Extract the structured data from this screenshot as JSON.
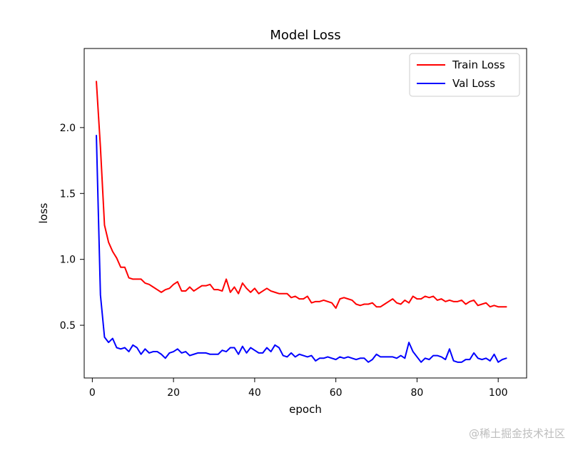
{
  "chart_data": {
    "type": "line",
    "title": "Model Loss",
    "xlabel": "epoch",
    "ylabel": "loss",
    "xlim": [
      -2,
      107
    ],
    "ylim": [
      0.1,
      2.6
    ],
    "xticks": [
      0,
      20,
      40,
      60,
      80,
      100
    ],
    "yticks": [
      0.5,
      1.0,
      1.5,
      2.0
    ],
    "ytick_labels": [
      "0.5",
      "1.0",
      "1.5",
      "2.0"
    ],
    "legend_position": "top-right",
    "x": [
      1,
      2,
      3,
      4,
      5,
      6,
      7,
      8,
      9,
      10,
      11,
      12,
      13,
      14,
      15,
      16,
      17,
      18,
      19,
      20,
      21,
      22,
      23,
      24,
      25,
      26,
      27,
      28,
      29,
      30,
      31,
      32,
      33,
      34,
      35,
      36,
      37,
      38,
      39,
      40,
      41,
      42,
      43,
      44,
      45,
      46,
      47,
      48,
      49,
      50,
      51,
      52,
      53,
      54,
      55,
      56,
      57,
      58,
      59,
      60,
      61,
      62,
      63,
      64,
      65,
      66,
      67,
      68,
      69,
      70,
      71,
      72,
      73,
      74,
      75,
      76,
      77,
      78,
      79,
      80,
      81,
      82,
      83,
      84,
      85,
      86,
      87,
      88,
      89,
      90,
      91,
      92,
      93,
      94,
      95,
      96,
      97,
      98,
      99,
      100,
      101,
      102
    ],
    "series": [
      {
        "name": "Train Loss",
        "color": "#ff0000",
        "values": [
          2.35,
          1.85,
          1.26,
          1.13,
          1.06,
          1.01,
          0.94,
          0.94,
          0.86,
          0.85,
          0.85,
          0.85,
          0.82,
          0.81,
          0.79,
          0.77,
          0.75,
          0.77,
          0.78,
          0.81,
          0.83,
          0.76,
          0.76,
          0.79,
          0.76,
          0.78,
          0.8,
          0.8,
          0.81,
          0.77,
          0.77,
          0.76,
          0.85,
          0.75,
          0.79,
          0.74,
          0.82,
          0.78,
          0.75,
          0.78,
          0.74,
          0.76,
          0.78,
          0.76,
          0.75,
          0.74,
          0.74,
          0.74,
          0.71,
          0.72,
          0.7,
          0.7,
          0.72,
          0.67,
          0.68,
          0.68,
          0.69,
          0.68,
          0.67,
          0.63,
          0.7,
          0.71,
          0.7,
          0.69,
          0.66,
          0.65,
          0.66,
          0.66,
          0.67,
          0.64,
          0.64,
          0.66,
          0.68,
          0.7,
          0.67,
          0.66,
          0.69,
          0.67,
          0.72,
          0.7,
          0.7,
          0.72,
          0.71,
          0.72,
          0.69,
          0.7,
          0.68,
          0.69,
          0.68,
          0.68,
          0.69,
          0.66,
          0.68,
          0.69,
          0.65,
          0.66,
          0.67,
          0.64,
          0.65,
          0.64,
          0.64,
          0.64
        ]
      },
      {
        "name": "Val Loss",
        "color": "#0000ff",
        "values": [
          1.94,
          0.73,
          0.41,
          0.37,
          0.4,
          0.33,
          0.32,
          0.33,
          0.3,
          0.35,
          0.33,
          0.28,
          0.32,
          0.29,
          0.3,
          0.3,
          0.28,
          0.25,
          0.29,
          0.3,
          0.32,
          0.29,
          0.3,
          0.27,
          0.28,
          0.29,
          0.29,
          0.29,
          0.28,
          0.28,
          0.28,
          0.31,
          0.3,
          0.33,
          0.33,
          0.28,
          0.34,
          0.29,
          0.33,
          0.31,
          0.29,
          0.29,
          0.33,
          0.3,
          0.35,
          0.33,
          0.27,
          0.26,
          0.29,
          0.26,
          0.28,
          0.27,
          0.26,
          0.27,
          0.23,
          0.25,
          0.25,
          0.26,
          0.25,
          0.24,
          0.26,
          0.25,
          0.26,
          0.25,
          0.24,
          0.25,
          0.25,
          0.22,
          0.24,
          0.28,
          0.26,
          0.26,
          0.26,
          0.26,
          0.25,
          0.27,
          0.25,
          0.37,
          0.3,
          0.26,
          0.22,
          0.25,
          0.24,
          0.27,
          0.27,
          0.26,
          0.24,
          0.32,
          0.23,
          0.22,
          0.22,
          0.24,
          0.24,
          0.29,
          0.25,
          0.24,
          0.25,
          0.23,
          0.28,
          0.22,
          0.24,
          0.25
        ]
      }
    ]
  },
  "watermark": "@稀土掘金技术社区"
}
